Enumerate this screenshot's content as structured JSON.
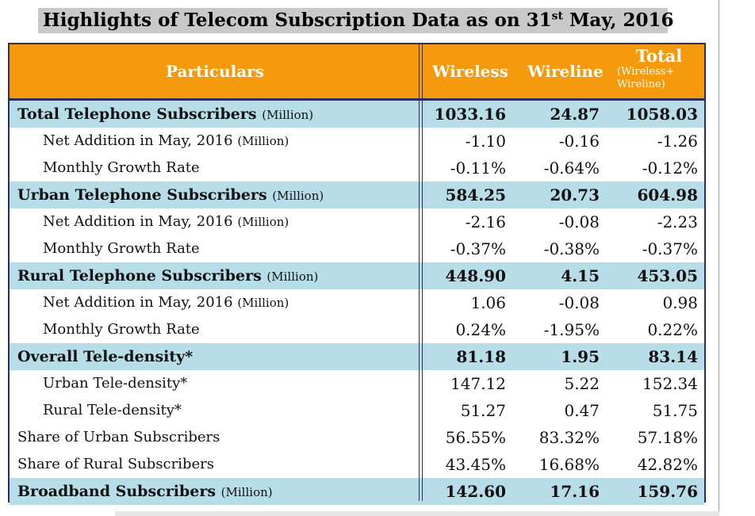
{
  "title": {
    "pre": "Highlights of Telecom Subscription Data as on 31",
    "sup": "st",
    "post": " May, 2016"
  },
  "header": {
    "particulars": "Particulars",
    "wireless": "Wireless",
    "wireline": "Wireline",
    "total": "Total",
    "total_note": "(Wireless+ Wireline)"
  },
  "rows": [
    {
      "label": "Total Telephone Subscribers",
      "unit": "(Million)",
      "wireless": "1033.16",
      "wireline": "24.87",
      "total": "1058.03"
    },
    {
      "label": "Net Addition in May, 2016",
      "unit": "(Million)",
      "wireless": "-1.10",
      "wireline": "-0.16",
      "total": "-1.26"
    },
    {
      "label": "Monthly Growth Rate",
      "unit": "",
      "wireless": "-0.11%",
      "wireline": "-0.64%",
      "total": "-0.12%"
    },
    {
      "label": "Urban Telephone Subscribers",
      "unit": "(Million)",
      "wireless": "584.25",
      "wireline": "20.73",
      "total": "604.98"
    },
    {
      "label": "Net Addition in May, 2016",
      "unit": "(Million)",
      "wireless": "-2.16",
      "wireline": "-0.08",
      "total": "-2.23"
    },
    {
      "label": "Monthly Growth Rate",
      "unit": "",
      "wireless": "-0.37%",
      "wireline": "-0.38%",
      "total": "-0.37%"
    },
    {
      "label": "Rural Telephone Subscribers",
      "unit": "(Million)",
      "wireless": "448.90",
      "wireline": "4.15",
      "total": "453.05"
    },
    {
      "label": "Net Addition in May, 2016",
      "unit": "(Million)",
      "wireless": "1.06",
      "wireline": "-0.08",
      "total": "0.98"
    },
    {
      "label": "Monthly Growth Rate",
      "unit": "",
      "wireless": "0.24%",
      "wireline": "-1.95%",
      "total": "0.22%"
    },
    {
      "label": "Overall Tele-density*",
      "unit": "",
      "wireless": "81.18",
      "wireline": "1.95",
      "total": "83.14"
    },
    {
      "label": "Urban Tele-density*",
      "unit": "",
      "wireless": "147.12",
      "wireline": "5.22",
      "total": "152.34"
    },
    {
      "label": "Rural Tele-density*",
      "unit": "",
      "wireless": "51.27",
      "wireline": "0.47",
      "total": "51.75"
    },
    {
      "label": "Share of Urban Subscribers",
      "unit": "",
      "wireless": "56.55%",
      "wireline": "83.32%",
      "total": "57.18%"
    },
    {
      "label": "Share of Rural Subscribers",
      "unit": "",
      "wireless": "43.45%",
      "wireline": "16.68%",
      "total": "42.82%"
    },
    {
      "label": "Broadband Subscribers",
      "unit": "(Million)",
      "wireless": "142.60",
      "wireline": "17.16",
      "total": "159.76"
    }
  ],
  "colors": {
    "header_bg": "#f59a0c",
    "highlight_row_bg": "#b7dde8",
    "title_bg": "#c9c9c9",
    "border": "#2a2f5f"
  }
}
